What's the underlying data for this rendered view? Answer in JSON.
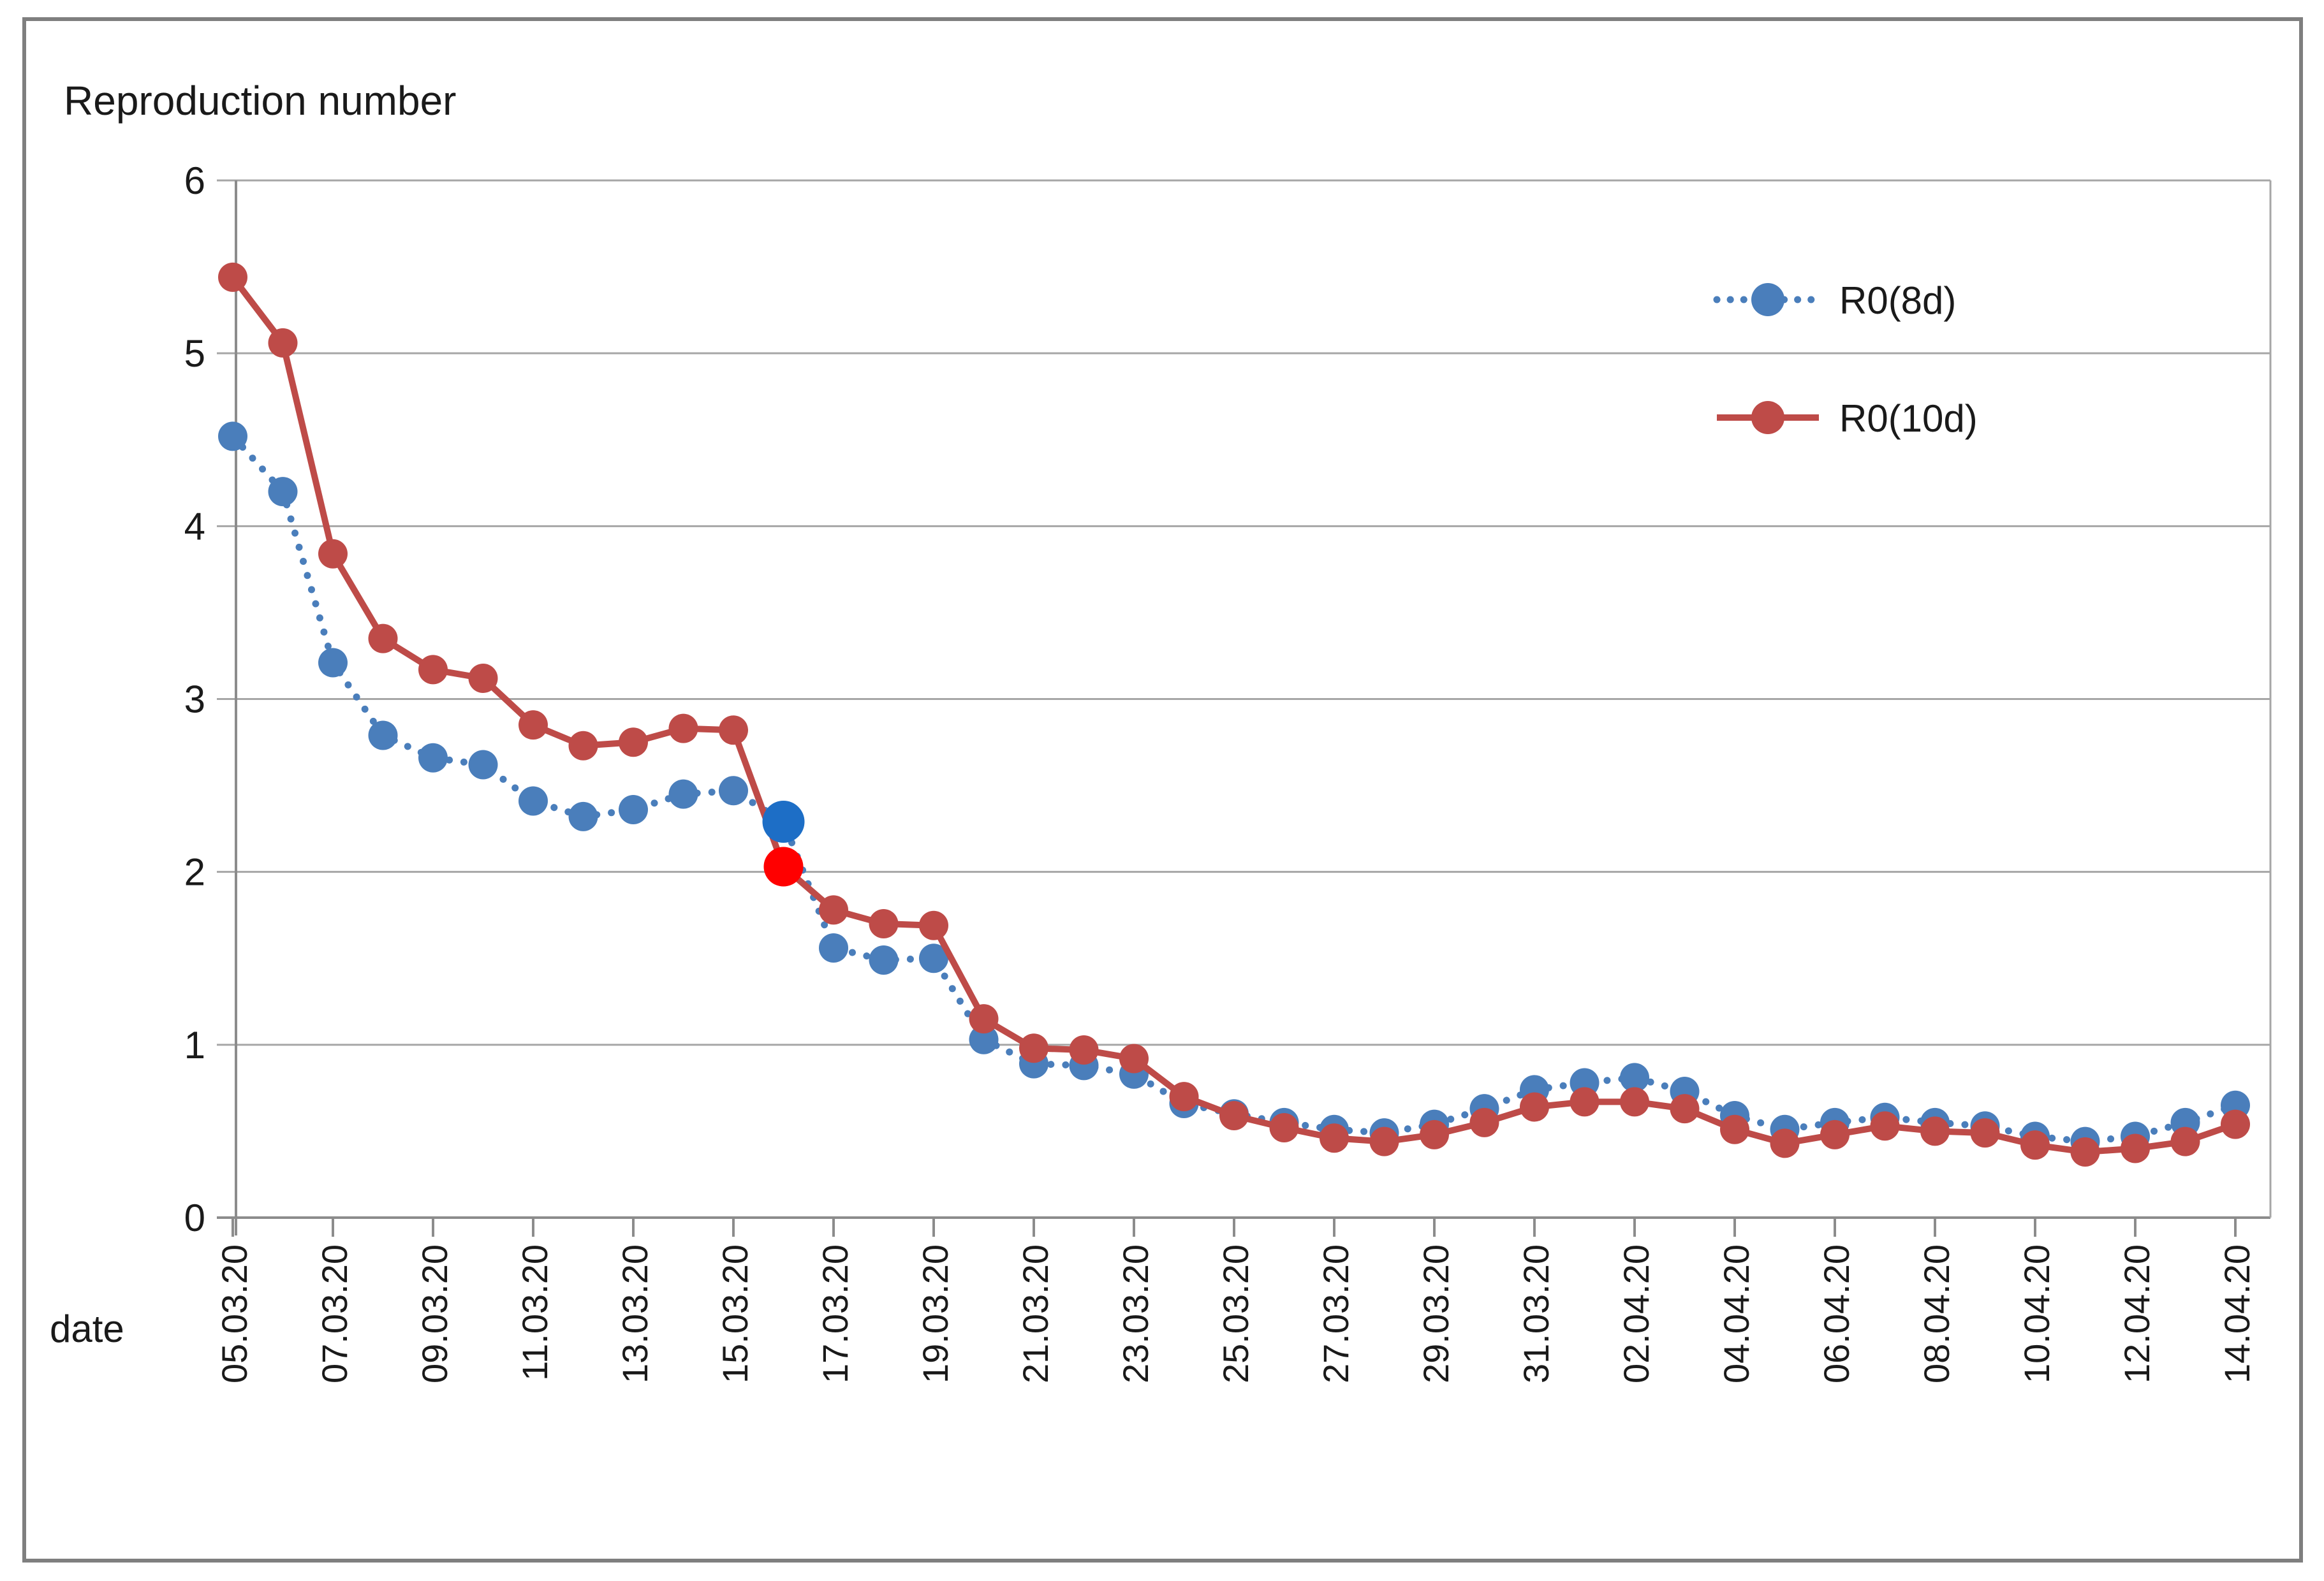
{
  "title": "Reproduction number",
  "x_axis_label": "date",
  "legend": [
    {
      "label": "R0(8d)"
    },
    {
      "label": "R0(10d)"
    }
  ],
  "colors": {
    "r0_8d": "#4a7ebb",
    "r0_10d": "#be4b48",
    "r0_8d_highlight": "#1d6ec6",
    "r0_10d_highlight": "#ff0000",
    "gridline": "#a6a6a6",
    "axis": "#8c8c8c",
    "frame_border": "#7f7f7f",
    "text": "#1a1a1a"
  },
  "chart_data": {
    "type": "line",
    "title": "Reproduction number",
    "xlabel": "date",
    "ylabel": "Reproduction number",
    "ylim": [
      0,
      6
    ],
    "y_ticks": [
      0,
      1,
      2,
      3,
      4,
      5,
      6
    ],
    "grid": "horizontal",
    "legend_position": "upper right",
    "x": [
      "05.03.20",
      "06.03.20",
      "07.03.20",
      "08.03.20",
      "09.03.20",
      "10.03.20",
      "11.03.20",
      "12.03.20",
      "13.03.20",
      "14.03.20",
      "15.03.20",
      "16.03.20",
      "17.03.20",
      "18.03.20",
      "19.03.20",
      "20.03.20",
      "21.03.20",
      "22.03.20",
      "23.03.20",
      "24.03.20",
      "25.03.20",
      "26.03.20",
      "27.03.20",
      "28.03.20",
      "29.03.20",
      "30.03.20",
      "31.03.20",
      "01.04.20",
      "02.04.20",
      "03.04.20",
      "04.04.20",
      "05.04.20",
      "06.04.20",
      "07.04.20",
      "08.04.20",
      "09.04.20",
      "10.04.20",
      "11.04.20",
      "12.04.20",
      "13.04.20",
      "14.04.20"
    ],
    "x_tick_labels": [
      "05.03.20",
      "07.03.20",
      "09.03.20",
      "11.03.20",
      "13.03.20",
      "15.03.20",
      "17.03.20",
      "19.03.20",
      "21.03.20",
      "23.03.20",
      "25.03.20",
      "27.03.20",
      "29.03.20",
      "31.03.20",
      "02.04.20",
      "04.04.20",
      "06.04.20",
      "08.04.20",
      "10.04.20",
      "12.04.20",
      "14.04.20"
    ],
    "series": [
      {
        "name": "R0(8d)",
        "style": "dotted",
        "marker": "circle",
        "color": "#4a7ebb",
        "values": [
          4.52,
          4.2,
          3.21,
          2.79,
          2.66,
          2.62,
          2.41,
          2.32,
          2.36,
          2.45,
          2.47,
          2.29,
          1.56,
          1.49,
          1.5,
          1.03,
          0.89,
          0.88,
          0.83,
          0.66,
          0.6,
          0.55,
          0.51,
          0.49,
          0.54,
          0.63,
          0.74,
          0.78,
          0.81,
          0.73,
          0.59,
          0.51,
          0.55,
          0.58,
          0.55,
          0.53,
          0.47,
          0.44,
          0.47,
          0.55,
          0.65
        ]
      },
      {
        "name": "R0(10d)",
        "style": "solid",
        "marker": "circle",
        "color": "#be4b48",
        "values": [
          5.44,
          5.06,
          3.84,
          3.35,
          3.17,
          3.12,
          2.85,
          2.73,
          2.75,
          2.83,
          2.82,
          2.03,
          1.78,
          1.7,
          1.69,
          1.15,
          0.98,
          0.97,
          0.92,
          0.7,
          0.59,
          0.52,
          0.46,
          0.44,
          0.48,
          0.55,
          0.64,
          0.67,
          0.67,
          0.63,
          0.51,
          0.43,
          0.48,
          0.53,
          0.5,
          0.49,
          0.42,
          0.38,
          0.4,
          0.44,
          0.54
        ]
      }
    ],
    "highlighted_points": [
      {
        "series": "R0(10d)",
        "x": "16.03.20",
        "value": 2.03,
        "color": "#ff0000"
      },
      {
        "series": "R0(8d)",
        "x": "16.03.20",
        "value": 2.29,
        "color": "#1d6ec6"
      }
    ]
  }
}
